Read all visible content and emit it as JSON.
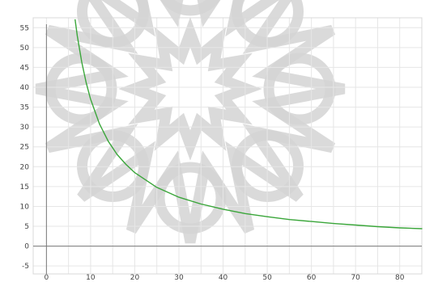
{
  "chart_data": {
    "type": "line",
    "title": "",
    "xlabel": "",
    "ylabel": "",
    "xlim": [
      -3,
      85
    ],
    "ylim": [
      -7,
      57.5
    ],
    "x_ticks": [
      0,
      10,
      20,
      30,
      40,
      50,
      60,
      70,
      80
    ],
    "y_ticks": [
      -5,
      0,
      5,
      10,
      15,
      20,
      25,
      30,
      35,
      40,
      45,
      50,
      55
    ],
    "x_tick_labels": [
      "0",
      "10",
      "20",
      "30",
      "40",
      "50",
      "60",
      "70",
      "80"
    ],
    "y_tick_labels": [
      "-5",
      "0",
      "5",
      "10",
      "15",
      "20",
      "25",
      "30",
      "35",
      "40",
      "45",
      "50",
      "55"
    ],
    "grid": true,
    "series": [
      {
        "color": "#3aa63a",
        "x": [
          6.5,
          7,
          8,
          9,
          10,
          12,
          14,
          16,
          18,
          20,
          25,
          30,
          35,
          40,
          45,
          50,
          55,
          60,
          65,
          70,
          75,
          80,
          85
        ],
        "y": [
          57,
          52.9,
          46.3,
          41.1,
          37.0,
          30.8,
          26.4,
          23.1,
          20.6,
          18.5,
          14.8,
          12.3,
          10.6,
          9.3,
          8.2,
          7.4,
          6.7,
          6.2,
          5.7,
          5.3,
          4.9,
          4.6,
          4.4
        ]
      }
    ]
  },
  "watermark": {
    "description_icon": "geometric-star-watermark-icon",
    "color": "#d3d3d3"
  }
}
